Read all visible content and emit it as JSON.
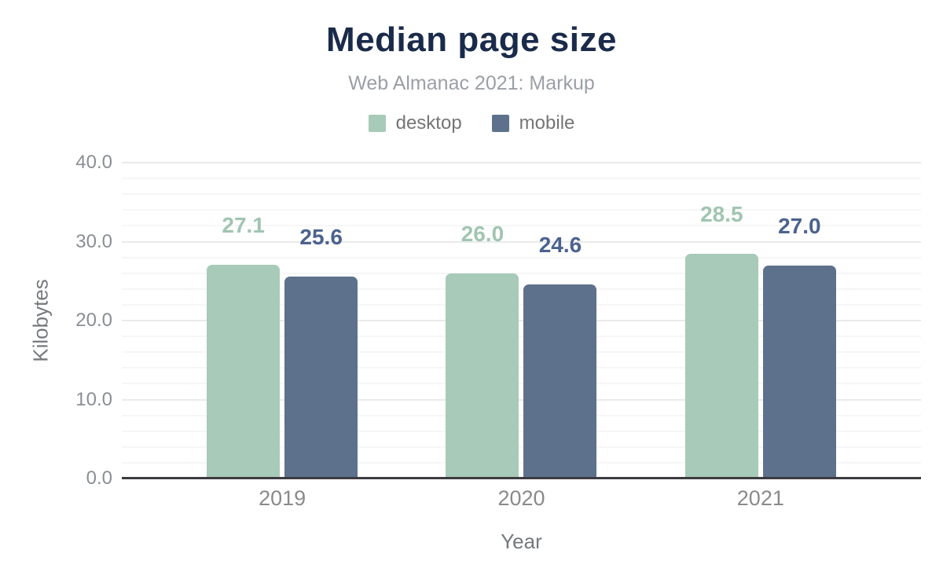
{
  "header": {
    "title": "Median page size",
    "subtitle": "Web Almanac 2021: Markup"
  },
  "colors": {
    "title_text": "#1a2b4a",
    "subtitle_text": "#9aa0a6",
    "tick_text": "#898f95",
    "axis_title_text": "#75797e",
    "axis_line": "#3c3c40",
    "grid_major": "#eaeaea",
    "grid_minor": "#f6f6f6",
    "desktop": "#a8cab8",
    "mobile": "#5e718c"
  },
  "chart_data": {
    "type": "bar",
    "title": "Median page size",
    "subtitle": "Web Almanac 2021: Markup",
    "xlabel": "Year",
    "ylabel": "Kilobytes",
    "categories": [
      "2019",
      "2020",
      "2021"
    ],
    "series": [
      {
        "name": "desktop",
        "color": "#a8cab8",
        "label_color": "#a0c5b1",
        "values": [
          27.1,
          26.0,
          28.5
        ],
        "value_labels": [
          "27.1",
          "26.0",
          "28.5"
        ]
      },
      {
        "name": "mobile",
        "color": "#5e718c",
        "label_color": "#4c628e",
        "values": [
          25.6,
          24.6,
          27.0
        ],
        "value_labels": [
          "25.6",
          "24.6",
          "27.0"
        ]
      }
    ],
    "ylim": [
      0,
      40
    ],
    "y_major_step": 10,
    "y_minor_step": 2,
    "y_ticks": [
      {
        "value": 0,
        "label": "0.0"
      },
      {
        "value": 10,
        "label": "10.0"
      },
      {
        "value": 20,
        "label": "20.0"
      },
      {
        "value": 30,
        "label": "30.0"
      },
      {
        "value": 40,
        "label": "40.0"
      }
    ],
    "grid": true,
    "legend_position": "top"
  }
}
